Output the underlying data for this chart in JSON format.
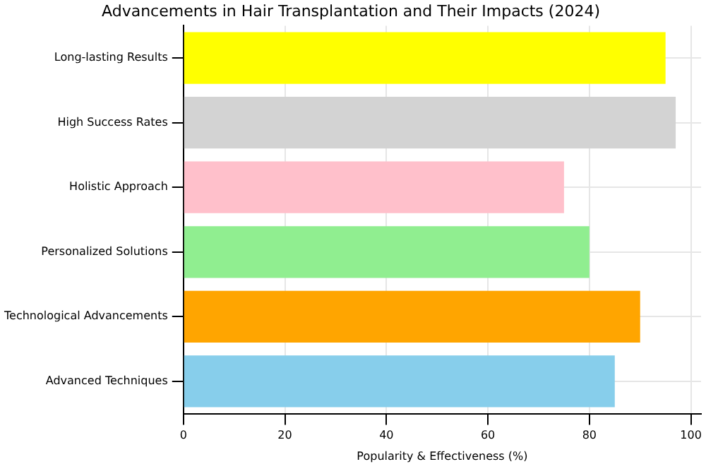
{
  "chart_data": {
    "type": "bar",
    "orientation": "horizontal",
    "title": "Advancements in Hair Transplantation and Their Impacts (2024)",
    "xlabel": "Popularity & Effectiveness (%)",
    "categories": [
      "Long-lasting Results",
      "High Success Rates",
      "Holistic Approach",
      "Personalized Solutions",
      "Technological Advancements",
      "Advanced Techniques"
    ],
    "values": [
      95,
      97,
      75,
      80,
      90,
      85
    ],
    "colors": [
      "#ffff00",
      "#d3d3d3",
      "#ffc0cb",
      "#90ee90",
      "#ffa500",
      "#87ceeb"
    ],
    "xlim": [
      0,
      102
    ],
    "xticks": [
      0,
      20,
      40,
      60,
      80,
      100
    ],
    "grid": true
  }
}
